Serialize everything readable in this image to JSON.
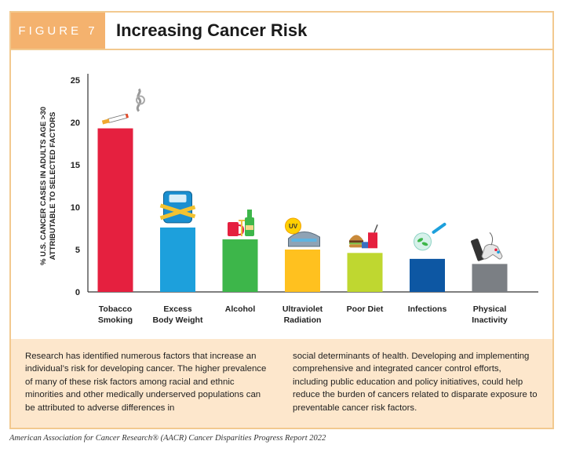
{
  "figure": {
    "tag": "FIGURE 7",
    "title": "Increasing Cancer Risk"
  },
  "chart_data": {
    "type": "bar",
    "title": "Increasing Cancer Risk",
    "ylabel_lines": [
      "% U.S. CANCER CASES IN ADULTS AGE >30",
      "ATTRIBUTABLE TO SELECTED FACTORS"
    ],
    "xlabel": "",
    "ylim": [
      0,
      25
    ],
    "yticks": [
      0,
      5,
      10,
      15,
      20,
      25
    ],
    "grid": false,
    "categories": [
      [
        "Tobacco",
        "Smoking"
      ],
      [
        "Excess",
        "Body Weight"
      ],
      [
        "Alcohol"
      ],
      [
        "Ultraviolet",
        "Radiation"
      ],
      [
        "Poor Diet"
      ],
      [
        "Infections"
      ],
      [
        "Physical",
        "Inactivity"
      ]
    ],
    "values": [
      19.3,
      7.6,
      6.2,
      5.0,
      4.6,
      3.9,
      3.3
    ],
    "colors": [
      "#e5203f",
      "#1da0dc",
      "#3db64a",
      "#ffc11f",
      "#bfd730",
      "#0d57a3",
      "#7b7f84"
    ],
    "icons": [
      "cigarette-icon",
      "scale-icon",
      "alcohol-icon",
      "tanning-bed-icon",
      "fast-food-icon",
      "microbe-icon",
      "controller-icon"
    ]
  },
  "description": {
    "col1": "Research has identified numerous factors that increase an individual’s risk for developing cancer. The higher prevalence of many of these risk factors among racial and ethnic minorities and other medically underserved populations can be attributed to adverse differences in",
    "col2": "social determinants of health. Developing and implementing comprehensive and integrated cancer control efforts, including public education and policy initiatives, could help reduce the burden of cancers related to disparate exposure to preventable cancer risk factors."
  },
  "credit": "American Association for Cancer Research® (AACR) Cancer Disparities Progress Report 2022"
}
